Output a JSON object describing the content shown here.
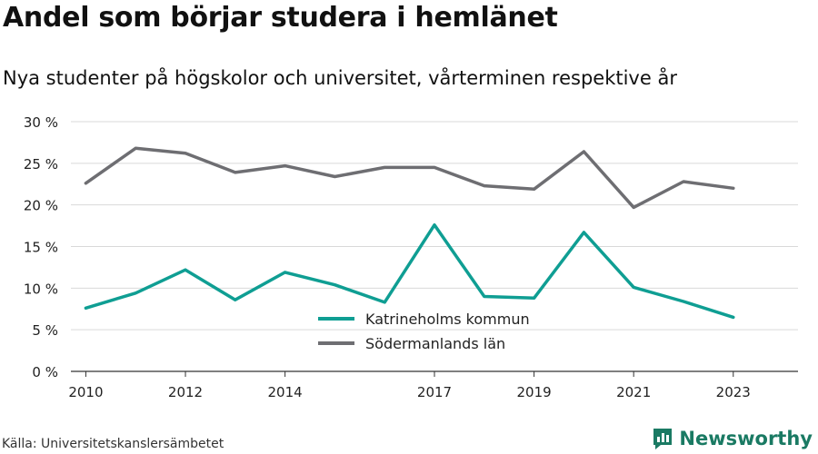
{
  "title": "Andel som börjar studera i hemlänet",
  "subtitle": "Nya studenter på högskolor och universitet, vårterminen respektive år",
  "source": "Källa: Universitetskanslersämbetet",
  "brand": {
    "name": "Newsworthy",
    "icon": "newsworthy-logo-icon",
    "color": "#1a7a63"
  },
  "chart_data": {
    "type": "line",
    "x": [
      2010,
      2011,
      2012,
      2013,
      2014,
      2015,
      2016,
      2017,
      2018,
      2019,
      2020,
      2021,
      2022,
      2023
    ],
    "x_tick_labels": [
      "2010",
      "2012",
      "2014",
      "2017",
      "2019",
      "2021",
      "2023"
    ],
    "y_tick_labels": [
      "0 %",
      "5 %",
      "10 %",
      "15 %",
      "20 %",
      "25 %",
      "30 %"
    ],
    "ylim": [
      0,
      30
    ],
    "y_ticks": [
      0,
      5,
      10,
      15,
      20,
      25,
      30
    ],
    "xlabel": "",
    "ylabel": "",
    "grid": true,
    "legend": "center-bottom",
    "series": [
      {
        "name": "Katrineholms kommun",
        "color": "#0f9e93",
        "values": [
          7.6,
          9.4,
          12.2,
          8.6,
          11.9,
          10.4,
          8.3,
          17.6,
          9.0,
          8.8,
          16.7,
          10.1,
          8.4,
          6.5
        ]
      },
      {
        "name": "Södermanlands län",
        "color": "#6e6e72",
        "values": [
          22.6,
          26.8,
          26.2,
          23.9,
          24.7,
          23.4,
          24.5,
          24.5,
          22.3,
          21.9,
          26.4,
          19.7,
          22.8,
          22.0
        ]
      }
    ]
  }
}
